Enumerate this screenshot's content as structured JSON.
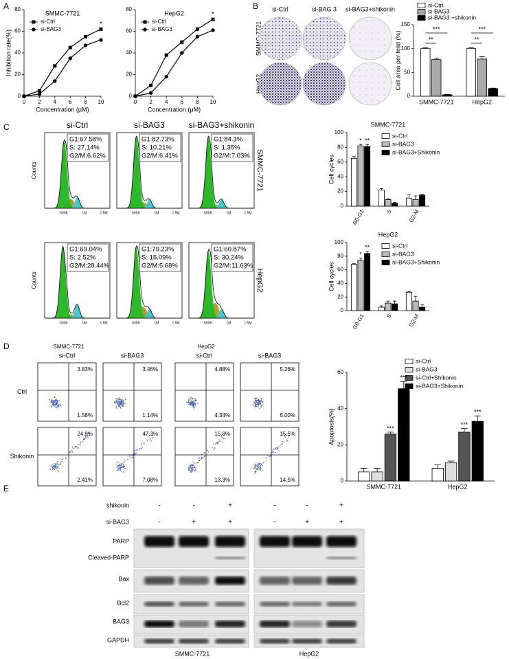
{
  "panels": [
    "A",
    "B",
    "C",
    "D",
    "E"
  ],
  "chart_data": [
    {
      "type": "line",
      "title": "SMMC-7721",
      "x": [
        0,
        2,
        4,
        6,
        8,
        10
      ],
      "xlim": [
        0,
        10
      ],
      "xticks": [
        0,
        2,
        4,
        6,
        8,
        10
      ],
      "ylim": [
        0,
        80
      ],
      "yticks": [
        0,
        20,
        40,
        60,
        80
      ],
      "y_label": "Inhibition rate(%)",
      "x_label": "Concentration (μM)",
      "legend": "upper left",
      "series": [
        {
          "name": "si-Ctrl",
          "color": "#000000",
          "marker": "square",
          "values": [
            0,
            5,
            28,
            45,
            55,
            62
          ]
        },
        {
          "name": "si-BAG3",
          "color": "#000000",
          "marker": "circle",
          "values": [
            0,
            2,
            14,
            35,
            47,
            52
          ]
        }
      ],
      "annotations": [
        null,
        null,
        null,
        null,
        null,
        "*"
      ]
    },
    {
      "type": "line",
      "title": "HepG2",
      "x": [
        0,
        2,
        4,
        6,
        8,
        10
      ],
      "xlim": [
        0,
        10
      ],
      "xticks": [
        0,
        2,
        4,
        6,
        8,
        10
      ],
      "ylim": [
        0,
        80
      ],
      "yticks": [
        0,
        20,
        40,
        60,
        80
      ],
      "x_label": "Concentration (μM)",
      "legend": "upper left",
      "series": [
        {
          "name": "si-Ctrl",
          "color": "#000000",
          "marker": "square",
          "values": [
            0,
            10,
            38,
            50,
            62,
            71
          ]
        },
        {
          "name": "si-BAG3",
          "color": "#000000",
          "marker": "circle",
          "values": [
            0,
            3,
            18,
            40,
            55,
            61
          ]
        }
      ],
      "annotations": [
        null,
        null,
        null,
        null,
        null,
        "*"
      ]
    },
    {
      "type": "bar",
      "categories": [
        "SMMC-7721",
        "HepG2"
      ],
      "ylim": [
        0,
        150
      ],
      "yticks": [
        0,
        50,
        100,
        150
      ],
      "y_label": "Cell area per feild (%)",
      "legend": "top",
      "series": [
        {
          "name": "si-Ctrl",
          "color": "#ffffff",
          "values": [
            100,
            100
          ],
          "errors": [
            2,
            2
          ]
        },
        {
          "name": "si-BAG3",
          "color": "#aaaaaa",
          "values": [
            77,
            78
          ],
          "errors": [
            3,
            5
          ]
        },
        {
          "name": "si-BAG3 +shikonin",
          "color": "#000000",
          "values": [
            3,
            16
          ],
          "errors": [
            1,
            1
          ]
        }
      ],
      "brackets": [
        "***",
        "**",
        "***",
        "**"
      ]
    },
    {
      "type": "bar",
      "title": "SMMC-7721",
      "categories": [
        "G0-G1",
        "S",
        "G2-M"
      ],
      "ylim": [
        0,
        100
      ],
      "yticks": [
        0,
        20,
        40,
        60,
        80,
        100
      ],
      "y_label": "Cell cycles",
      "legend": "upper right",
      "series": [
        {
          "name": "si-Ctrl",
          "color": "#ffffff",
          "values": [
            65,
            22,
            11
          ],
          "errors": [
            3,
            2,
            5
          ]
        },
        {
          "name": "si-BAG3",
          "color": "#bbbbbb",
          "values": [
            82,
            9,
            9
          ],
          "errors": [
            2,
            1,
            5
          ],
          "annotations": [
            "*",
            null,
            null
          ]
        },
        {
          "name": "si-BAG3+Shikonin",
          "color": "#000000",
          "values": [
            81,
            4,
            15
          ],
          "errors": [
            3,
            1,
            1
          ],
          "annotations": [
            "**",
            null,
            null
          ]
        }
      ]
    },
    {
      "type": "bar",
      "title": "HepG2",
      "categories": [
        "G0-G1",
        "S",
        "G2-M"
      ],
      "ylim": [
        0,
        100
      ],
      "yticks": [
        0,
        20,
        40,
        60,
        80,
        100
      ],
      "y_label": "Cell cycles",
      "legend": "upper right",
      "series": [
        {
          "name": "si-Ctrl",
          "color": "#ffffff",
          "values": [
            68,
            5,
            27
          ],
          "errors": [
            1,
            2,
            1
          ]
        },
        {
          "name": "si-BAG3",
          "color": "#bbbbbb",
          "values": [
            74,
            11,
            14
          ],
          "errors": [
            3,
            3,
            7
          ],
          "annotations": [
            "*",
            null,
            null
          ]
        },
        {
          "name": "si-BAG3+Shikonin",
          "color": "#000000",
          "values": [
            84,
            10,
            5
          ],
          "errors": [
            3,
            4,
            4
          ],
          "annotations": [
            "**",
            null,
            null
          ]
        }
      ]
    },
    {
      "type": "bar",
      "categories": [
        "SMMC-7721",
        "HepG2"
      ],
      "ylim": [
        0,
        60
      ],
      "yticks": [
        0,
        20,
        40,
        60
      ],
      "y_label": "Apoptosis(%)",
      "legend": "upper right",
      "series": [
        {
          "name": "si-Ctrl",
          "color": "#ffffff",
          "values": [
            5,
            7
          ],
          "errors": [
            2,
            2
          ]
        },
        {
          "name": "si-BAG3",
          "color": "#dddddd",
          "values": [
            5,
            10
          ],
          "errors": [
            2,
            1
          ]
        },
        {
          "name": "si-Ctrl+Shikonin",
          "color": "#555555",
          "values": [
            26,
            27
          ],
          "errors": [
            1,
            2
          ],
          "annotations": [
            "***",
            "***"
          ]
        },
        {
          "name": "si-BAG3+Shikonin",
          "color": "#000000",
          "values": [
            51,
            33
          ],
          "errors": [
            4,
            3
          ],
          "annotations": [
            "***",
            "***"
          ]
        }
      ]
    }
  ],
  "colony": {
    "columns": [
      "si-Ctrl",
      "si-BAG 3",
      "si-BAG3+shikonin"
    ],
    "rows": [
      "SMMC-7721",
      "HepG2"
    ]
  },
  "cell_cycle": {
    "columns": [
      "si-Ctrl",
      "si-BAG3",
      "si-BAG3+shikonin"
    ],
    "rows": [
      "SMMC-7721",
      "HepG2"
    ],
    "y_label": "Counts",
    "x_ticks": [
      "500K",
      "1M",
      "1.5M"
    ],
    "stats": [
      [
        [
          "G1:67.58%",
          "S:  27.14%",
          "G2/M:6.62%"
        ],
        [
          "G1:82.73%",
          "S:  10.21%",
          "G2/M:6.41%"
        ],
        [
          "G1:84.3%",
          "S:  1.35%",
          "G2/M:7.03%"
        ]
      ],
      [
        [
          "G1:69.04%",
          "S:  2.52%",
          "G2/M:28.44%"
        ],
        [
          "G1:79.23%",
          "S:  15.09%",
          "G2/M:5.68%"
        ],
        [
          "G1:60.87%",
          "S:  30.24%",
          "G2/M:11.63%"
        ]
      ]
    ]
  },
  "apoptosis_flow": {
    "groups": [
      "SMMC-7721",
      "HepG2"
    ],
    "columns": [
      "si-Ctrl",
      "si-BAG3",
      "si-Ctrl",
      "si-BAG3"
    ],
    "rows": [
      "Ctrl",
      "Shikonin"
    ],
    "quadrants": [
      [
        [
          "3.83%",
          "1.58%"
        ],
        [
          "3.46%",
          "1.14%"
        ],
        [
          "4.88%",
          "4.34%"
        ],
        [
          "5.26%",
          "6.00%"
        ]
      ],
      [
        [
          "24.9%",
          "2.41%"
        ],
        [
          "47.3%",
          "7.08%"
        ],
        [
          "15.8%",
          "13.3%"
        ],
        [
          "15.5%",
          "14.5%"
        ]
      ]
    ]
  },
  "western": {
    "treatments": [
      {
        "name": "shikonin",
        "signs": [
          "-",
          "-",
          "+",
          "-",
          "-",
          "+"
        ]
      },
      {
        "name": "si-BAG3",
        "signs": [
          "-",
          "+",
          "+",
          "-",
          "+",
          "+"
        ]
      }
    ],
    "proteins": [
      "PARP",
      "Cleaved-PARP",
      "Bax",
      "Bcl2",
      "BAG3",
      "GAPDH"
    ],
    "cell_lines": [
      "SMMC-7721",
      "HepG2"
    ]
  }
}
